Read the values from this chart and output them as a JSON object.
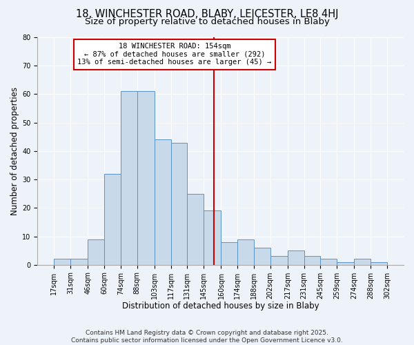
{
  "title1": "18, WINCHESTER ROAD, BLABY, LEICESTER, LE8 4HJ",
  "title2": "Size of property relative to detached houses in Blaby",
  "xlabel": "Distribution of detached houses by size in Blaby",
  "ylabel": "Number of detached properties",
  "bin_edges": [
    17,
    31,
    46,
    60,
    74,
    88,
    103,
    117,
    131,
    145,
    160,
    174,
    188,
    202,
    217,
    231,
    245,
    259,
    274,
    288,
    302
  ],
  "bar_heights": [
    2,
    2,
    9,
    32,
    61,
    61,
    44,
    43,
    25,
    19,
    8,
    9,
    6,
    3,
    5,
    3,
    2,
    1,
    2,
    1
  ],
  "bar_color": "#c8d9ea",
  "bar_edge_color": "#5a93c8",
  "property_size": 154,
  "vline_color": "#cc0000",
  "annotation_box_color": "#cc0000",
  "annotation_line1": "18 WINCHESTER ROAD: 154sqm",
  "annotation_line2": "← 87% of detached houses are smaller (292)",
  "annotation_line3": "13% of semi-detached houses are larger (45) →",
  "footer_text": "Contains HM Land Registry data © Crown copyright and database right 2025.\nContains public sector information licensed under the Open Government Licence v3.0.",
  "ylim": [
    0,
    80
  ],
  "yticks": [
    0,
    10,
    20,
    30,
    40,
    50,
    60,
    70,
    80
  ],
  "bg_color": "#eef2f9",
  "title_fontsize": 10.5,
  "subtitle_fontsize": 9.5,
  "tick_label_fontsize": 7,
  "axis_label_fontsize": 8.5,
  "annotation_fontsize": 7.5,
  "footer_fontsize": 6.5,
  "ylabel_fontsize": 8.5
}
